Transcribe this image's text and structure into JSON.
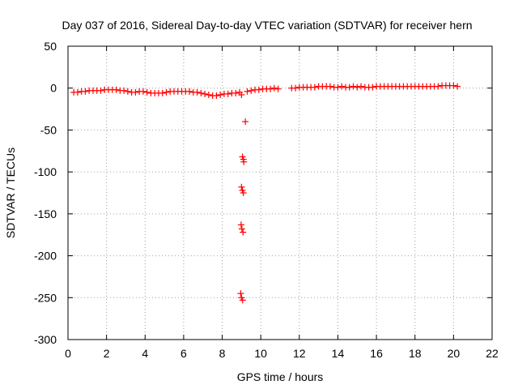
{
  "chart_data": {
    "type": "scatter",
    "title": "Day 037 of 2016, Sidereal Day-to-day VTEC variation (SDTVAR) for receiver hern",
    "xlabel": "GPS time / hours",
    "ylabel": "SDTVAR / TECUs",
    "xlim": [
      0,
      22
    ],
    "ylim": [
      -300,
      50
    ],
    "xticks": [
      0,
      2,
      4,
      6,
      8,
      10,
      12,
      14,
      16,
      18,
      20,
      22
    ],
    "yticks": [
      50,
      0,
      -50,
      -100,
      -150,
      -200,
      -250,
      -300
    ],
    "grid": true,
    "marker": "+",
    "color": "#ff0000",
    "series": [
      {
        "name": "SDTVAR",
        "x": [
          0.3,
          0.5,
          0.7,
          0.9,
          1.1,
          1.3,
          1.5,
          1.7,
          1.9,
          2.1,
          2.3,
          2.5,
          2.7,
          2.9,
          3.1,
          3.3,
          3.5,
          3.7,
          3.9,
          4.1,
          4.3,
          4.5,
          4.7,
          4.9,
          5.1,
          5.3,
          5.5,
          5.7,
          5.9,
          6.1,
          6.3,
          6.5,
          6.7,
          6.9,
          7.1,
          7.3,
          7.5,
          7.7,
          7.9,
          8.1,
          8.3,
          8.5,
          8.7,
          8.9,
          9.0,
          9.2,
          9.05,
          9.1,
          9.12,
          9.0,
          9.05,
          9.1,
          8.98,
          9.02,
          9.08,
          8.96,
          9.0,
          9.06,
          9.3,
          9.5,
          9.7,
          9.9,
          10.1,
          10.3,
          10.5,
          10.7,
          10.9,
          11.6,
          11.8,
          12.0,
          12.2,
          12.4,
          12.6,
          12.8,
          13.0,
          13.2,
          13.4,
          13.6,
          13.8,
          14.0,
          14.2,
          14.4,
          14.6,
          14.8,
          15.0,
          15.2,
          15.4,
          15.6,
          15.8,
          16.0,
          16.2,
          16.4,
          16.6,
          16.8,
          17.0,
          17.2,
          17.4,
          17.6,
          17.8,
          18.0,
          18.2,
          18.4,
          18.6,
          18.8,
          19.0,
          19.2,
          19.4,
          19.6,
          19.8,
          20.0,
          20.2
        ],
        "y": [
          -5,
          -5,
          -4,
          -4,
          -3,
          -3,
          -3,
          -3,
          -2,
          -2,
          -2,
          -2,
          -3,
          -3,
          -4,
          -5,
          -5,
          -4,
          -4,
          -5,
          -6,
          -6,
          -6,
          -6,
          -5,
          -4,
          -4,
          -4,
          -4,
          -4,
          -4,
          -5,
          -5,
          -6,
          -7,
          -8,
          -9,
          -9,
          -8,
          -7,
          -7,
          -6,
          -6,
          -5,
          -8,
          -40,
          -82,
          -85,
          -88,
          -118,
          -122,
          -125,
          -163,
          -168,
          -172,
          -245,
          -250,
          -253,
          -4,
          -3,
          -2,
          -2,
          -1,
          -1,
          -1,
          0,
          -1,
          0,
          0,
          1,
          1,
          1,
          1,
          1,
          2,
          2,
          2,
          2,
          1,
          1,
          2,
          1,
          1,
          2,
          1,
          2,
          1,
          1,
          1,
          2,
          2,
          2,
          2,
          2,
          2,
          2,
          2,
          2,
          2,
          2,
          2,
          2,
          2,
          2,
          2,
          2,
          3,
          3,
          3,
          3,
          2
        ]
      }
    ]
  }
}
